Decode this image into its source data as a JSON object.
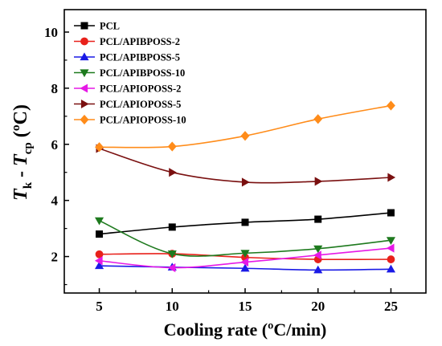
{
  "chart_data": {
    "type": "line",
    "xlabel": "Cooling rate (ºC/min)",
    "ylabel_parts": {
      "t1": "T",
      "sub1": "k",
      "minus": " - ",
      "t2": "T",
      "sub2": "cp",
      "unit": " (ºC)"
    },
    "xlim": [
      2.6,
      27.4
    ],
    "ylim": [
      0.7,
      10.8
    ],
    "x_ticks": [
      "5",
      "10",
      "15",
      "20",
      "25"
    ],
    "y_ticks": [
      "2",
      "4",
      "6",
      "8",
      "10"
    ],
    "legend_position": "top-left",
    "x": [
      5,
      10,
      15,
      20,
      25
    ],
    "series": [
      {
        "name": "PCL",
        "color": "#000000",
        "marker": "square",
        "values": [
          2.8,
          3.05,
          3.22,
          3.33,
          3.56
        ]
      },
      {
        "name": "PCL/APIBPOSS-2",
        "color": "#e8211b",
        "marker": "circle",
        "values": [
          2.08,
          2.1,
          1.97,
          1.9,
          1.9
        ]
      },
      {
        "name": "PCL/APIBPOSS-5",
        "color": "#1a1ae6",
        "marker": "triangle-up",
        "values": [
          1.67,
          1.62,
          1.58,
          1.52,
          1.55
        ]
      },
      {
        "name": "PCL/APIBPOSS-10",
        "color": "#1e7a1e",
        "marker": "triangle-down",
        "values": [
          3.28,
          2.1,
          2.12,
          2.28,
          2.58
        ]
      },
      {
        "name": "PCL/APIOPOSS-2",
        "color": "#e619e6",
        "marker": "triangle-left",
        "values": [
          1.85,
          1.6,
          1.8,
          2.05,
          2.3
        ]
      },
      {
        "name": "PCL/APIOPOSS-5",
        "color": "#7a1010",
        "marker": "triangle-right",
        "values": [
          5.85,
          5.0,
          4.65,
          4.68,
          4.82
        ]
      },
      {
        "name": "PCL/APIOPOSS-10",
        "color": "#ff8c1a",
        "marker": "diamond",
        "values": [
          5.9,
          5.92,
          6.3,
          6.9,
          7.38
        ]
      }
    ]
  }
}
